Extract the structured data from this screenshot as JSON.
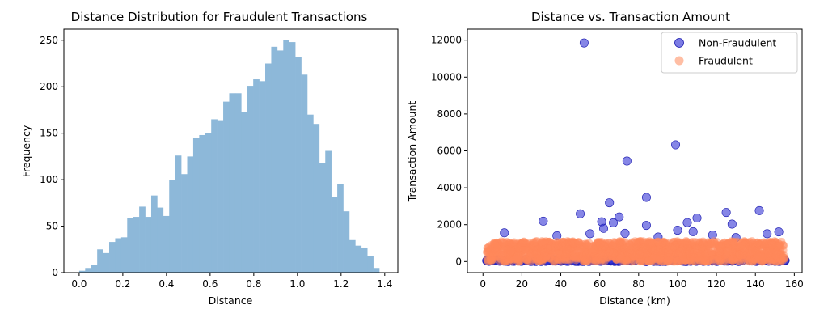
{
  "chart_data": [
    {
      "type": "bar",
      "title": "Distance Distribution for Fraudulent Transactions",
      "xlabel": "Distance",
      "ylabel": "Frequency",
      "xlim": [
        -0.07,
        1.46
      ],
      "ylim": [
        0,
        262
      ],
      "xticks": [
        "0.0",
        "0.2",
        "0.4",
        "0.6",
        "0.8",
        "1.0",
        "1.2",
        "1.4"
      ],
      "yticks": [
        "0",
        "50",
        "100",
        "150",
        "200",
        "250"
      ],
      "bar_color": "#8db8d9",
      "bin_start": 0.0,
      "bin_width": 0.0275,
      "values": [
        2,
        5,
        8,
        25,
        21,
        33,
        37,
        38,
        59,
        60,
        71,
        60,
        83,
        70,
        61,
        100,
        126,
        106,
        125,
        145,
        148,
        150,
        165,
        164,
        184,
        193,
        193,
        173,
        201,
        208,
        206,
        225,
        243,
        239,
        250,
        248,
        232,
        213,
        170,
        160,
        118,
        131,
        81,
        95,
        66,
        35,
        29,
        27,
        18,
        5
      ]
    },
    {
      "type": "scatter",
      "title": "Distance vs. Transaction Amount",
      "xlabel": "Distance (km)",
      "ylabel": "Transaction Amount",
      "xlim": [
        -8,
        164
      ],
      "ylim": [
        -600,
        12600
      ],
      "xticks": [
        "0",
        "20",
        "40",
        "60",
        "80",
        "100",
        "120",
        "140",
        "160"
      ],
      "yticks": [
        "0",
        "2000",
        "4000",
        "6000",
        "8000",
        "10000",
        "12000"
      ],
      "legend": "top-right",
      "series": [
        {
          "name": "Non-Fraudulent",
          "color": "#3535d6",
          "x": [
            52,
            99,
            74,
            84,
            65,
            31,
            50,
            70,
            61,
            67,
            105,
            110,
            125,
            142,
            128,
            62,
            84,
            11,
            152,
            108,
            38,
            90,
            118,
            55,
            130,
            2,
            155,
            146,
            100,
            73
          ],
          "y": [
            11850,
            6330,
            5450,
            3480,
            3190,
            2190,
            2590,
            2420,
            2160,
            2100,
            2110,
            2360,
            2660,
            2760,
            2030,
            1800,
            1960,
            1560,
            1610,
            1620,
            1400,
            1330,
            1440,
            1510,
            1300,
            50,
            80,
            1510,
            1700,
            1530
          ]
        },
        {
          "name": "Fraudulent",
          "color": "#ff8859",
          "x_range": [
            2,
            155
          ],
          "y_range": [
            0,
            1100
          ]
        }
      ]
    }
  ]
}
